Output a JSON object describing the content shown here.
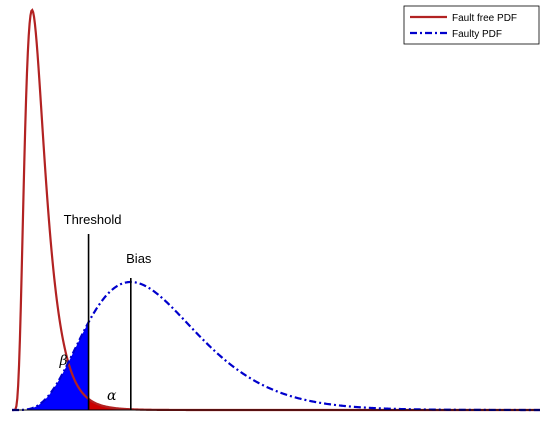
{
  "chart_data": {
    "type": "area",
    "title": "",
    "xlabel": "",
    "ylabel": "",
    "xlim": [
      0,
      10
    ],
    "ylim": [
      0,
      1
    ],
    "grid": false,
    "legend_position": "top-right",
    "series": [
      {
        "name": "Fault free PDF",
        "color": "#b22222",
        "line_style": "solid",
        "distribution": "lognormal",
        "mode": 0.38,
        "peak": 1.0,
        "sigma": 0.5
      },
      {
        "name": "Faulty PDF",
        "color": "#0000cc",
        "line_style": "dash-dot",
        "distribution": "gamma",
        "mode": 2.25,
        "peak": 0.32,
        "shape": 5.5
      }
    ],
    "regions": [
      {
        "label": "β",
        "description": "faulty PDF area below threshold",
        "color": "#0000ff"
      },
      {
        "label": "α",
        "description": "fault free PDF area above threshold",
        "color": "#cc0000"
      }
    ],
    "annotations": [
      {
        "label": "Threshold",
        "x": 1.45,
        "height": 0.44
      },
      {
        "label": "Bias",
        "x": 2.25,
        "height": 0.33
      }
    ]
  }
}
